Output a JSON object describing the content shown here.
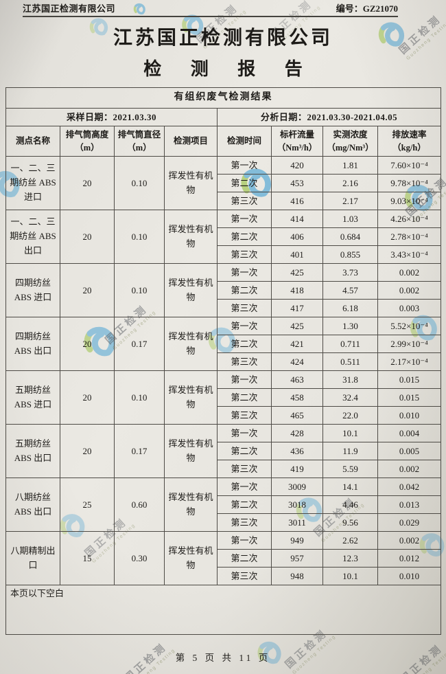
{
  "header": {
    "company_small": "江苏国正检测有限公司",
    "report_no_label": "编号：",
    "report_no": "GZ21070",
    "title": "江苏国正检测有限公司",
    "subtitle": "检 测 报 告"
  },
  "watermark": {
    "text": "国正检测",
    "subtext": "Guozheng Testing"
  },
  "table": {
    "section_title": "有组织废气检测结果",
    "sampling_label": "采样日期：",
    "sampling_date": "2021.03.30",
    "analysis_label": "分析日期：",
    "analysis_date": "2021.03.30-2021.04.05",
    "columns": [
      {
        "line1": "测点名称",
        "line2": ""
      },
      {
        "line1": "排气筒高度",
        "line2": "（m）"
      },
      {
        "line1": "排气筒直径",
        "line2": "（m）"
      },
      {
        "line1": "检测项目",
        "line2": ""
      },
      {
        "line1": "检测时间",
        "line2": ""
      },
      {
        "line1": "标杆流量",
        "line2": "（Nm³/h）"
      },
      {
        "line1": "实测浓度",
        "line2": "（mg/Nm³）"
      },
      {
        "line1": "排放速率",
        "line2": "（kg/h）"
      }
    ],
    "groups": [
      {
        "site": "一、二、三期纺丝 ABS 进口",
        "stack_height": "20",
        "stack_diameter": "0.10",
        "item": "挥发性有机物",
        "runs": [
          {
            "time": "第一次",
            "flow": "420",
            "conc": "1.81",
            "rate": "7.60×10⁻⁴"
          },
          {
            "time": "第二次",
            "flow": "453",
            "conc": "2.16",
            "rate": "9.78×10⁻⁴"
          },
          {
            "time": "第三次",
            "flow": "416",
            "conc": "2.17",
            "rate": "9.03×10⁻⁴"
          }
        ]
      },
      {
        "site": "一、二、三期纺丝 ABS 出口",
        "stack_height": "20",
        "stack_diameter": "0.10",
        "item": "挥发性有机物",
        "runs": [
          {
            "time": "第一次",
            "flow": "414",
            "conc": "1.03",
            "rate": "4.26×10⁻⁴"
          },
          {
            "time": "第二次",
            "flow": "406",
            "conc": "0.684",
            "rate": "2.78×10⁻⁴"
          },
          {
            "time": "第三次",
            "flow": "401",
            "conc": "0.855",
            "rate": "3.43×10⁻⁴"
          }
        ]
      },
      {
        "site": "四期纺丝 ABS 进口",
        "stack_height": "20",
        "stack_diameter": "0.10",
        "item": "挥发性有机物",
        "runs": [
          {
            "time": "第一次",
            "flow": "425",
            "conc": "3.73",
            "rate": "0.002"
          },
          {
            "time": "第二次",
            "flow": "418",
            "conc": "4.57",
            "rate": "0.002"
          },
          {
            "time": "第三次",
            "flow": "417",
            "conc": "6.18",
            "rate": "0.003"
          }
        ]
      },
      {
        "site": "四期纺丝 ABS 出口",
        "stack_height": "20",
        "stack_diameter": "0.17",
        "item": "挥发性有机物",
        "runs": [
          {
            "time": "第一次",
            "flow": "425",
            "conc": "1.30",
            "rate": "5.52×10⁻⁴"
          },
          {
            "time": "第二次",
            "flow": "421",
            "conc": "0.711",
            "rate": "2.99×10⁻⁴"
          },
          {
            "time": "第三次",
            "flow": "424",
            "conc": "0.511",
            "rate": "2.17×10⁻⁴"
          }
        ]
      },
      {
        "site": "五期纺丝 ABS 进口",
        "stack_height": "20",
        "stack_diameter": "0.10",
        "item": "挥发性有机物",
        "runs": [
          {
            "time": "第一次",
            "flow": "463",
            "conc": "31.8",
            "rate": "0.015"
          },
          {
            "time": "第二次",
            "flow": "458",
            "conc": "32.4",
            "rate": "0.015"
          },
          {
            "time": "第三次",
            "flow": "465",
            "conc": "22.0",
            "rate": "0.010"
          }
        ]
      },
      {
        "site": "五期纺丝 ABS 出口",
        "stack_height": "20",
        "stack_diameter": "0.17",
        "item": "挥发性有机物",
        "runs": [
          {
            "time": "第一次",
            "flow": "428",
            "conc": "10.1",
            "rate": "0.004"
          },
          {
            "time": "第二次",
            "flow": "436",
            "conc": "11.9",
            "rate": "0.005"
          },
          {
            "time": "第三次",
            "flow": "419",
            "conc": "5.59",
            "rate": "0.002"
          }
        ]
      },
      {
        "site": "八期纺丝 ABS 出口",
        "stack_height": "25",
        "stack_diameter": "0.60",
        "item": "挥发性有机物",
        "runs": [
          {
            "time": "第一次",
            "flow": "3009",
            "conc": "14.1",
            "rate": "0.042"
          },
          {
            "time": "第二次",
            "flow": "3018",
            "conc": "4.46",
            "rate": "0.013"
          },
          {
            "time": "第三次",
            "flow": "3011",
            "conc": "9.56",
            "rate": "0.029"
          }
        ]
      },
      {
        "site": "八期精制出口",
        "stack_height": "15",
        "stack_diameter": "0.30",
        "item": "挥发性有机物",
        "runs": [
          {
            "time": "第一次",
            "flow": "949",
            "conc": "2.62",
            "rate": "0.002"
          },
          {
            "time": "第二次",
            "flow": "957",
            "conc": "12.3",
            "rate": "0.012"
          },
          {
            "time": "第三次",
            "flow": "948",
            "conc": "10.1",
            "rate": "0.010"
          }
        ]
      }
    ],
    "blank_note": "本页以下空白"
  },
  "footer": {
    "page_text": "第 5 页 共 11 页"
  },
  "colors": {
    "logo_blue": "#3f9fd4",
    "logo_green": "#95c13e",
    "paper": "#ebe9e3",
    "ink": "#1d1b18"
  }
}
